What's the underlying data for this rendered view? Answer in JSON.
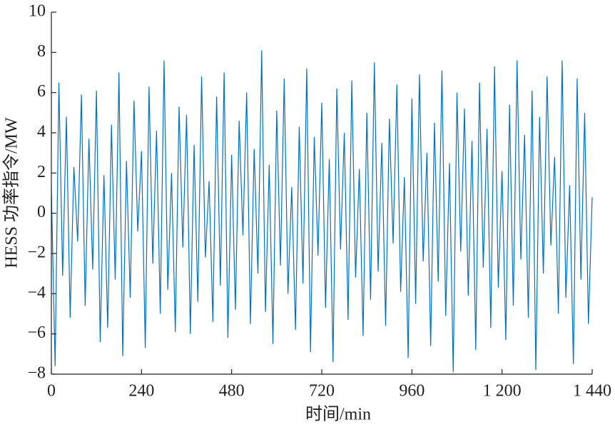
{
  "chart_data": {
    "type": "line",
    "xlabel": "时间/min",
    "ylabel": "HESS 功率指令/MW",
    "x": [
      0,
      10,
      20,
      30,
      40,
      50,
      60,
      70,
      80,
      90,
      100,
      110,
      120,
      130,
      140,
      150,
      160,
      170,
      180,
      190,
      200,
      210,
      220,
      230,
      240,
      250,
      260,
      270,
      280,
      290,
      300,
      310,
      320,
      330,
      340,
      350,
      360,
      370,
      380,
      390,
      400,
      410,
      420,
      430,
      440,
      450,
      460,
      470,
      480,
      490,
      500,
      510,
      520,
      530,
      540,
      550,
      560,
      570,
      580,
      590,
      600,
      610,
      620,
      630,
      640,
      650,
      660,
      670,
      680,
      690,
      700,
      710,
      720,
      730,
      740,
      750,
      760,
      770,
      780,
      790,
      800,
      810,
      820,
      830,
      840,
      850,
      860,
      870,
      880,
      890,
      900,
      910,
      920,
      930,
      940,
      950,
      960,
      970,
      980,
      990,
      1000,
      1010,
      1020,
      1030,
      1040,
      1050,
      1060,
      1070,
      1080,
      1090,
      1100,
      1110,
      1120,
      1130,
      1140,
      1150,
      1160,
      1170,
      1180,
      1190,
      1200,
      1210,
      1220,
      1230,
      1240,
      1250,
      1260,
      1270,
      1280,
      1290,
      1300,
      1310,
      1320,
      1330,
      1340,
      1350,
      1360,
      1370,
      1380,
      1390,
      1400,
      1410,
      1420,
      1430,
      1440
    ],
    "series": [
      {
        "color": "#0072bd",
        "values": [
          1.2,
          -7.6,
          6.5,
          -3.1,
          4.8,
          -5.2,
          2.3,
          -1.4,
          5.9,
          -4.6,
          3.7,
          -2.8,
          6.1,
          -6.4,
          1.9,
          -5.7,
          4.4,
          -3.3,
          7.0,
          -7.1,
          2.6,
          -4.2,
          5.6,
          -0.9,
          3.1,
          -6.7,
          6.3,
          -2.5,
          4.1,
          -5.0,
          7.6,
          -3.8,
          2.0,
          -5.9,
          5.3,
          -1.7,
          4.9,
          -6.0,
          3.4,
          -4.4,
          6.8,
          -2.2,
          1.6,
          -5.4,
          5.8,
          -3.6,
          7.0,
          -6.2,
          2.9,
          -4.8,
          4.6,
          -1.1,
          6.0,
          -5.5,
          3.2,
          -3.0,
          8.1,
          -4.9,
          2.4,
          -6.5,
          5.1,
          -2.6,
          6.7,
          -4.0,
          1.3,
          -5.8,
          4.3,
          -3.5,
          7.2,
          -6.9,
          3.8,
          -2.1,
          5.5,
          -4.7,
          2.7,
          -7.4,
          6.2,
          -1.8,
          4.0,
          -5.3,
          6.6,
          -3.2,
          2.2,
          -6.1,
          5.0,
          -4.3,
          7.5,
          -2.9,
          3.5,
          -5.6,
          4.7,
          -1.5,
          6.4,
          -3.9,
          1.8,
          -7.2,
          5.7,
          -4.5,
          6.9,
          -2.4,
          3.0,
          -6.6,
          4.5,
          -3.4,
          7.1,
          -5.1,
          2.5,
          -7.9,
          6.0,
          -1.9,
          5.2,
          -4.1,
          3.6,
          -6.8,
          6.5,
          -2.7,
          4.2,
          -5.7,
          7.3,
          -3.7,
          2.1,
          -6.3,
          5.4,
          -4.6,
          7.6,
          -2.3,
          3.9,
          -5.2,
          6.1,
          -7.8,
          4.8,
          -3.0,
          6.8,
          -1.6,
          2.8,
          -5.0,
          7.6,
          -4.2,
          1.4,
          -7.5,
          6.7,
          -3.3,
          5.0,
          -5.5,
          0.8
        ]
      }
    ],
    "xlim": [
      0,
      1440
    ],
    "xticks": [
      0,
      240,
      480,
      720,
      960,
      {
        "value": 1200,
        "label": "1 200"
      },
      {
        "value": 1440,
        "label": "1 440"
      }
    ],
    "ylim": [
      -8,
      10
    ],
    "yticks": [
      {
        "value": -8,
        "label": "−8"
      },
      {
        "value": -6,
        "label": "−6"
      },
      {
        "value": -4,
        "label": "−4"
      },
      {
        "value": -2,
        "label": "−2"
      },
      0,
      2,
      4,
      6,
      8,
      10
    ]
  }
}
